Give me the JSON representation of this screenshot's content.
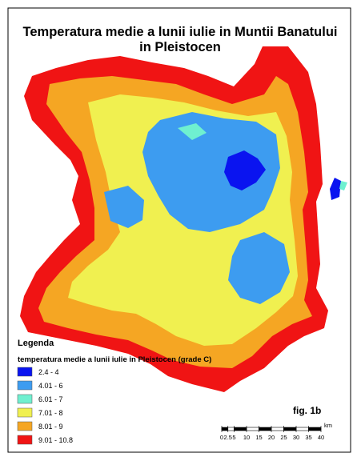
{
  "title_lines": [
    "Temperatura medie a lunii iulie in Muntii Banatului",
    "in Pleistocen"
  ],
  "legend": {
    "heading": "Legenda",
    "subtitle": "temperatura medie a lunii iulie in Pleistocen (grade C)",
    "classes": [
      {
        "label": "2.4 - 4",
        "color": "#0a14f0"
      },
      {
        "label": "4.01 - 6",
        "color": "#3d9cf0"
      },
      {
        "label": "6.01 - 7",
        "color": "#6ff0d0"
      },
      {
        "label": "7.01 - 8",
        "color": "#f0f050"
      },
      {
        "label": "8.01 - 9",
        "color": "#f5a623"
      },
      {
        "label": "9.01 - 10.8",
        "color": "#f01414"
      }
    ]
  },
  "figure_label": "fig. 1b",
  "scale_bar": {
    "ticks": [
      0,
      2.5,
      5,
      10,
      15,
      20,
      25,
      30,
      35,
      40
    ],
    "unit": "km"
  }
}
